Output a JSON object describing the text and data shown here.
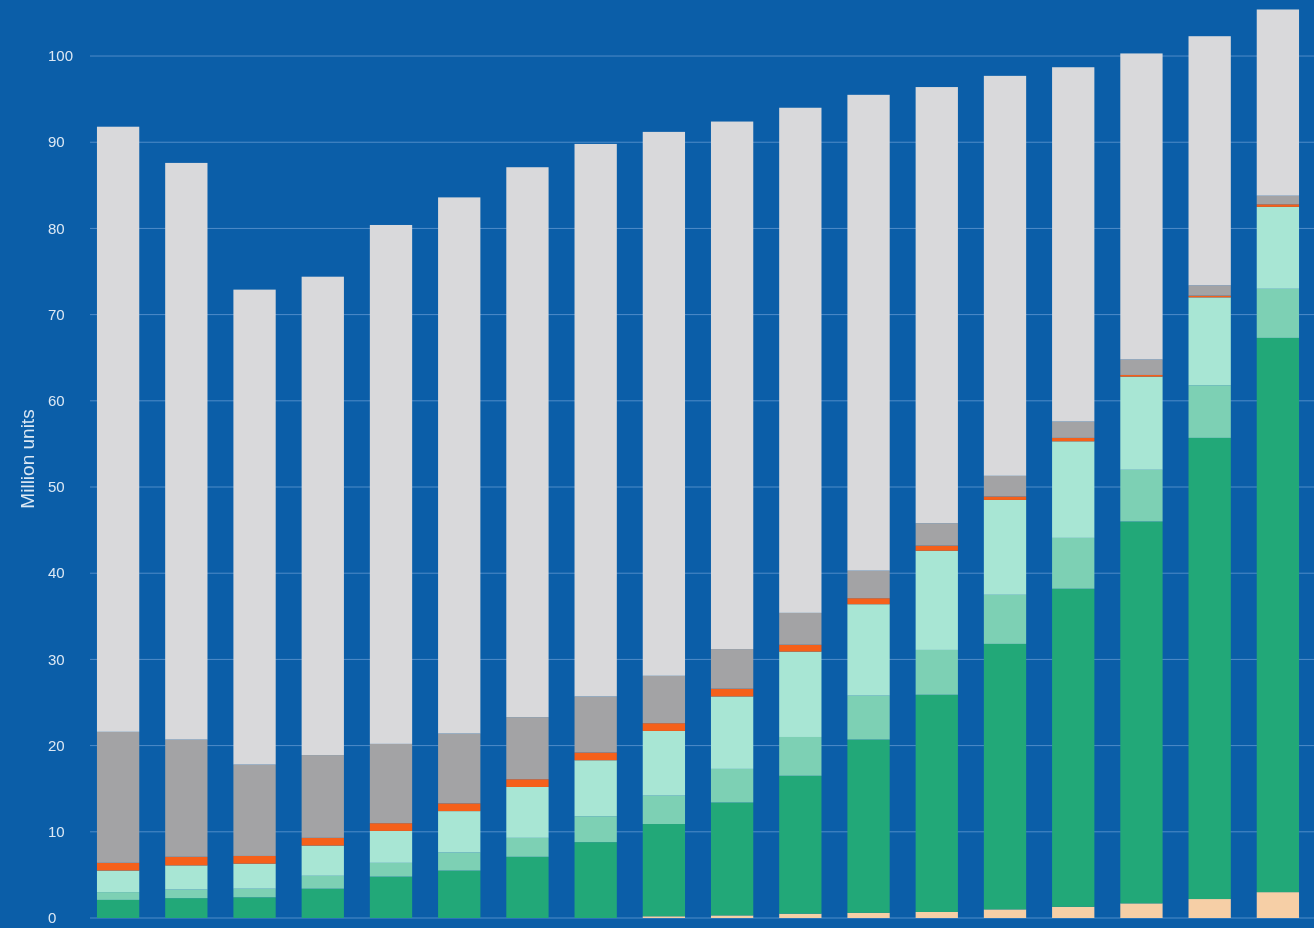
{
  "chart_data": {
    "type": "bar",
    "stacked": true,
    "ylabel": "Million units",
    "categories": [
      null,
      null,
      null,
      null,
      null,
      null,
      null,
      null,
      null,
      null,
      null,
      null,
      null,
      null,
      null,
      null,
      null,
      null
    ],
    "ylim": [
      0,
      106.5
    ],
    "yticks": [
      0,
      10,
      20,
      30,
      40,
      50,
      60,
      70,
      80,
      90,
      100
    ],
    "grid": "y",
    "series": [
      {
        "color": "#f6cfa6",
        "values": [
          0,
          0,
          0,
          0,
          0,
          0,
          0,
          0,
          0.2,
          0.3,
          0.5,
          0.6,
          0.7,
          1.0,
          1.3,
          1.7,
          2.2,
          3.0
        ]
      },
      {
        "color": "#22a878",
        "values": [
          2.1,
          2.3,
          2.4,
          3.4,
          4.8,
          5.5,
          7.1,
          8.8,
          10.7,
          13.1,
          16.0,
          20.1,
          25.2,
          30.8,
          36.9,
          44.3,
          53.5,
          64.3
        ]
      },
      {
        "color": "#7dd0b4",
        "values": [
          0.9,
          1.0,
          1.0,
          1.5,
          1.6,
          2.1,
          2.2,
          3.0,
          3.3,
          3.9,
          4.5,
          5.1,
          5.2,
          5.7,
          5.9,
          6.0,
          6.1,
          5.7
        ]
      },
      {
        "color": "#a8e6d4",
        "values": [
          2.5,
          2.8,
          2.9,
          3.5,
          3.7,
          4.8,
          5.9,
          6.5,
          7.5,
          8.4,
          9.9,
          10.6,
          11.5,
          11.0,
          11.2,
          10.8,
          10.2,
          9.5
        ]
      },
      {
        "color": "#f5601a",
        "values": [
          0.9,
          1.0,
          0.9,
          0.9,
          0.9,
          0.9,
          0.9,
          0.9,
          0.9,
          0.9,
          0.8,
          0.7,
          0.6,
          0.4,
          0.4,
          0.2,
          0.2,
          0.3
        ]
      },
      {
        "color": "#a3a3a5",
        "values": [
          15.2,
          13.6,
          10.6,
          9.6,
          9.2,
          8.1,
          7.2,
          6.5,
          5.5,
          4.6,
          3.7,
          3.2,
          2.6,
          2.4,
          1.9,
          1.8,
          1.2,
          1.0
        ]
      },
      {
        "color": "#d9d9db",
        "values": [
          70.2,
          66.9,
          55.1,
          55.5,
          60.2,
          62.2,
          63.8,
          64.1,
          63.1,
          61.2,
          58.6,
          55.2,
          50.6,
          46.4,
          41.1,
          35.5,
          28.9,
          21.6
        ]
      }
    ]
  }
}
